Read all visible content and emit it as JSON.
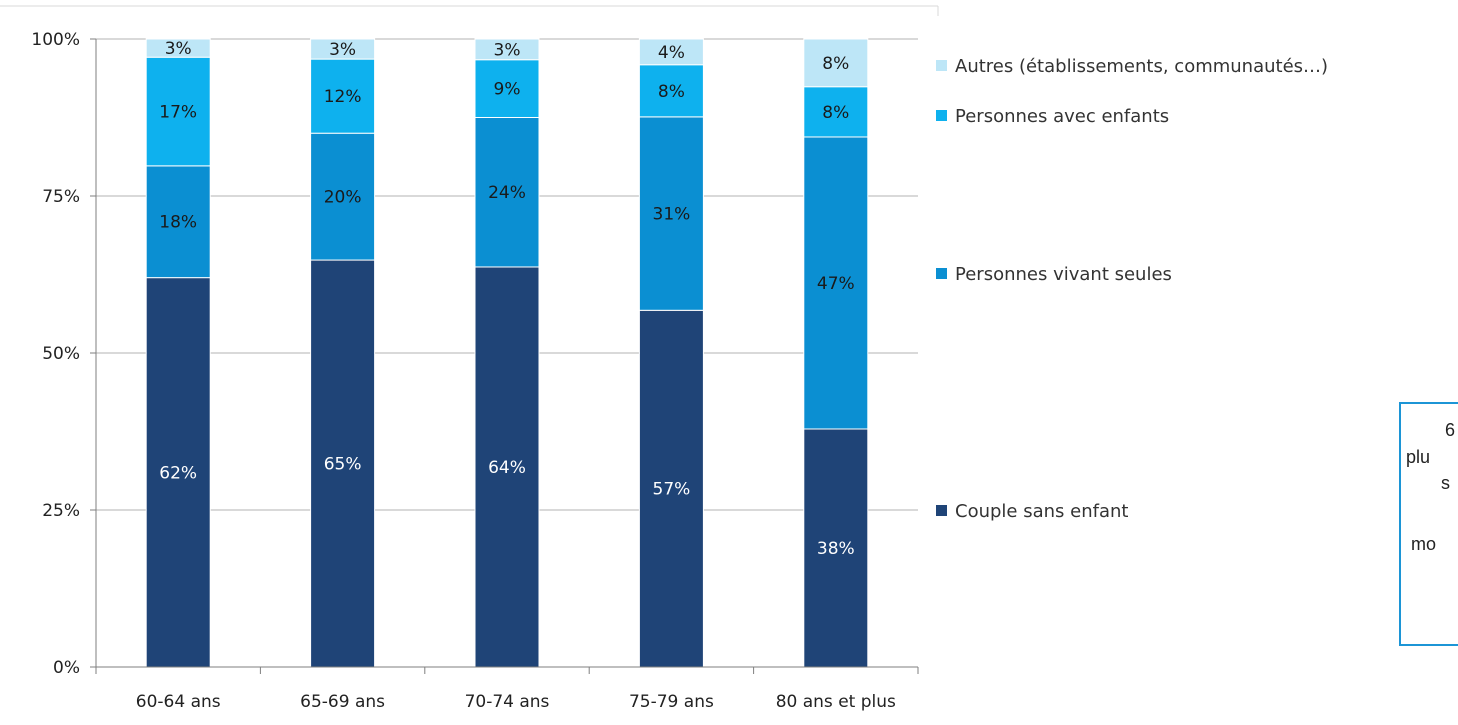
{
  "chart_data": {
    "type": "bar",
    "stacked": true,
    "categories": [
      "60-64 ans",
      "65-69 ans",
      "70-74 ans",
      "75-79 ans",
      "80 ans et plus"
    ],
    "series": [
      {
        "name": "Couple sans enfant",
        "values": [
          62,
          64.8,
          63.7,
          56.8,
          37.9
        ],
        "labels": [
          "62%",
          "65%",
          "64%",
          "57%",
          "38%"
        ],
        "color": "#1f4477"
      },
      {
        "name": "Personnes vivant seules",
        "values": [
          17.8,
          20.2,
          23.8,
          30.8,
          46.5
        ],
        "labels": [
          "18%",
          "20%",
          "24%",
          "31%",
          "47%"
        ],
        "color": "#0b8fd2"
      },
      {
        "name": "Personnes avec enfants",
        "values": [
          17.3,
          11.8,
          9.2,
          8.3,
          8.0
        ],
        "labels": [
          "17%",
          "12%",
          "9%",
          "8%",
          "8%"
        ],
        "color": "#0eb1ee"
      },
      {
        "name": "Autres (établissements,  communautés…)",
        "values": [
          2.9,
          3.2,
          3.3,
          4.1,
          7.6
        ],
        "labels": [
          "3%",
          "3%",
          "3%",
          "4%",
          "8%"
        ],
        "color": "#bde6f7"
      }
    ],
    "yticks": [
      "0%",
      "25%",
      "50%",
      "75%",
      "100%"
    ],
    "ylim": [
      0,
      100
    ],
    "grid": true,
    "legend_position": "right"
  },
  "side_box_text": [
    "6",
    "plu",
    "s",
    "mo"
  ],
  "colors": {
    "axis": "#7f7f7f",
    "grid": "#b3b3b3",
    "box_border": "#1c95d6"
  }
}
